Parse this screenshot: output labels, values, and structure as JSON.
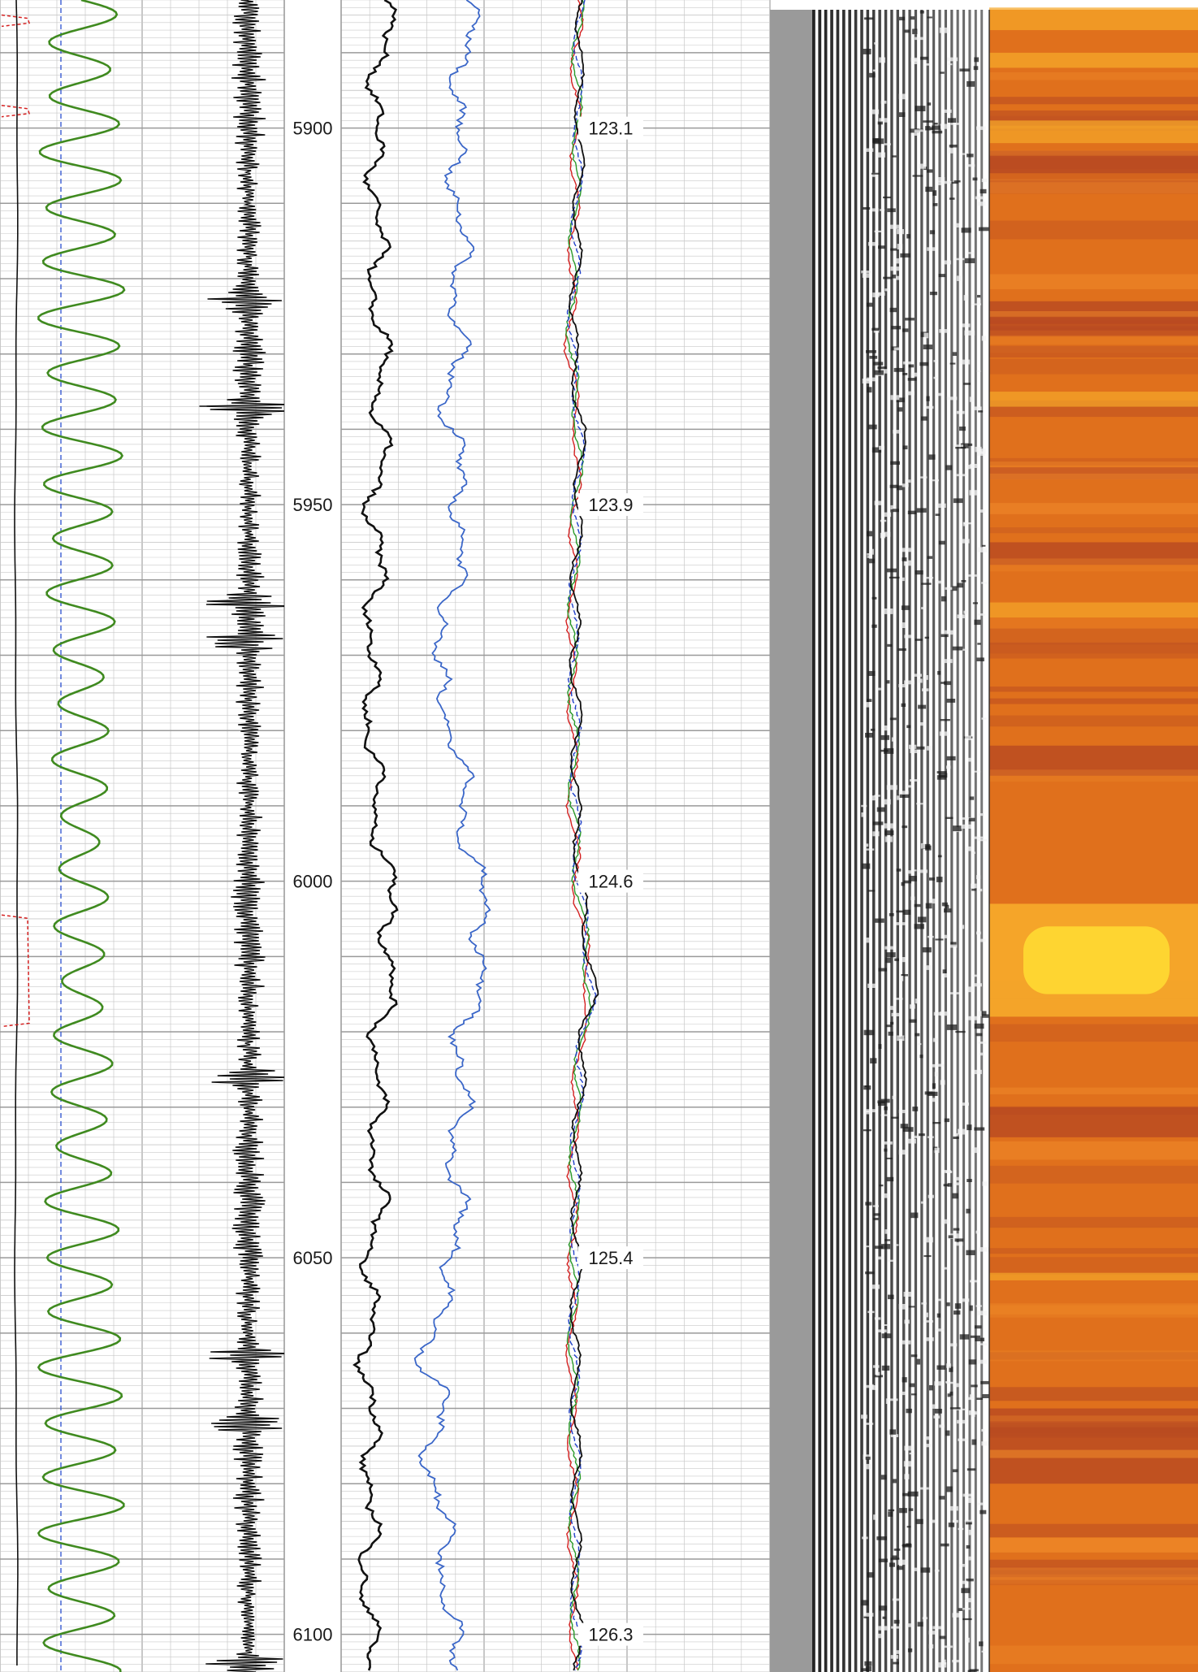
{
  "colors": {
    "grid_minor": "#c9c9c9",
    "grid_major": "#9a9a9a",
    "caliper": "#111111",
    "bit_size": "#2a4fd0",
    "oscillation": "#3f8a1f",
    "amplitude": "#111111",
    "gamma": "#111111",
    "resistivity": "#3a66c8",
    "temp_curves": [
      "#d42020",
      "#2a9a2a",
      "#2040c8",
      "#111111"
    ],
    "flag": "#d42020",
    "vdl_strip": "#9a9a9a",
    "heat_base": "#e0701c",
    "heat_dark": "#b84a22",
    "heat_bright": "#ffdd33"
  },
  "chart_data": {
    "type": "line",
    "depth_range": [
      5883,
      6105
    ],
    "depth_ticks": [
      {
        "depth": 5900,
        "label": "5900"
      },
      {
        "depth": 5950,
        "label": "5950"
      },
      {
        "depth": 6000,
        "label": "6000"
      },
      {
        "depth": 6050,
        "label": "6050"
      },
      {
        "depth": 6100,
        "label": "6100"
      }
    ],
    "temperature_annotations": [
      {
        "depth": 5900,
        "label": "123.1"
      },
      {
        "depth": 5950,
        "label": "123.9"
      },
      {
        "depth": 6000,
        "label": "124.6"
      },
      {
        "depth": 6050,
        "label": "125.4"
      },
      {
        "depth": 6100,
        "label": "126.3"
      }
    ],
    "flag_intervals": [
      {
        "top": 5885,
        "bottom": 5886.5
      },
      {
        "top": 5897,
        "bottom": 5898.5
      },
      {
        "top": 6004.5,
        "bottom": 6019.3
      }
    ],
    "bright_zones": [
      {
        "top": 6003,
        "bottom": 6018,
        "level": 0.9
      },
      {
        "top": 5884,
        "bottom": 5887,
        "level": 0.45
      },
      {
        "top": 5890,
        "bottom": 5892,
        "level": 0.5
      },
      {
        "top": 5899,
        "bottom": 5902,
        "level": 0.4
      },
      {
        "top": 5935,
        "bottom": 5937,
        "level": 0.4
      },
      {
        "top": 5963,
        "bottom": 5965,
        "level": 0.3
      },
      {
        "top": 6052,
        "bottom": 6053,
        "level": 0.35
      }
    ],
    "dark_zones": [
      {
        "top": 5903,
        "bottom": 5906
      },
      {
        "top": 5923,
        "bottom": 5926
      },
      {
        "top": 5955,
        "bottom": 5958
      },
      {
        "top": 5982,
        "bottom": 5986
      },
      {
        "top": 6030,
        "bottom": 6034
      },
      {
        "top": 6070,
        "bottom": 6080
      }
    ],
    "spikes": [
      {
        "depth": 5923,
        "amp": 0.8
      },
      {
        "depth": 5937,
        "amp": 0.75
      },
      {
        "depth": 5963,
        "amp": 0.8
      },
      {
        "depth": 5968,
        "amp": 0.75
      },
      {
        "depth": 6026,
        "amp": 1.0
      },
      {
        "depth": 6063,
        "amp": 0.85
      },
      {
        "depth": 6072,
        "amp": 0.7
      },
      {
        "depth": 6104,
        "amp": 0.75
      }
    ],
    "gamma_curve": {
      "depth": [
        5885,
        5893,
        5900,
        5910,
        5920,
        5930,
        5940,
        5950,
        5960,
        5970,
        5980,
        5990,
        5998,
        6005,
        6012,
        6020,
        6030,
        6040,
        6050,
        6060,
        6070,
        6080,
        6090,
        6100,
        6105
      ],
      "value": [
        0.55,
        0.48,
        0.4,
        0.45,
        0.42,
        0.48,
        0.5,
        0.4,
        0.45,
        0.35,
        0.38,
        0.42,
        0.55,
        0.62,
        0.6,
        0.48,
        0.42,
        0.46,
        0.38,
        0.32,
        0.36,
        0.38,
        0.32,
        0.35,
        0.34
      ]
    },
    "resistivity_curve": {
      "depth": [
        5885,
        5893,
        5900,
        5910,
        5920,
        5930,
        5940,
        5950,
        5960,
        5965,
        5970,
        5975,
        5980,
        5990,
        5998,
        6005,
        6012,
        6020,
        6030,
        6040,
        6050,
        6055,
        6062,
        6068,
        6075,
        6080,
        6090,
        6100,
        6105
      ],
      "value": [
        0.6,
        0.55,
        0.45,
        0.5,
        0.52,
        0.45,
        0.4,
        0.55,
        0.45,
        0.42,
        0.2,
        0.3,
        0.45,
        0.55,
        0.65,
        0.8,
        0.75,
        0.55,
        0.5,
        0.45,
        0.5,
        0.32,
        0.1,
        0.35,
        0.12,
        0.28,
        0.35,
        0.4,
        0.45
      ]
    },
    "temperature_curve": {
      "depth": [
        5885,
        5893,
        5900,
        5920,
        5930,
        5940,
        5950,
        5960,
        5970,
        5980,
        5990,
        6000,
        6005,
        6010,
        6015,
        6020,
        6030,
        6040,
        6050,
        6060,
        6070,
        6080,
        6090,
        6100,
        6105
      ],
      "value": [
        0.5,
        0.45,
        0.48,
        0.4,
        0.35,
        0.5,
        0.45,
        0.4,
        0.38,
        0.42,
        0.4,
        0.48,
        0.55,
        0.65,
        0.7,
        0.55,
        0.45,
        0.4,
        0.42,
        0.38,
        0.4,
        0.42,
        0.4,
        0.45,
        0.42
      ]
    }
  }
}
